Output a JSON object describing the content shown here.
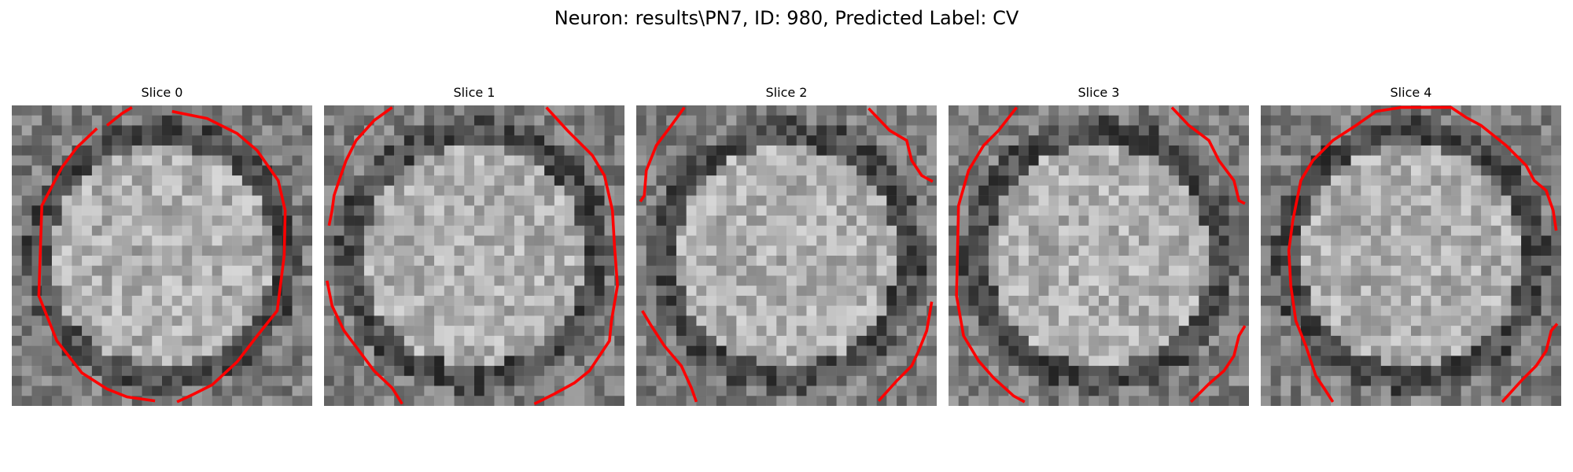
{
  "figure": {
    "title": "Neuron: results\\PN7, ID: 980, Predicted Label: CV"
  },
  "panels": [
    {
      "title": "Slice 0",
      "ring": "full",
      "seed": 11
    },
    {
      "title": "Slice 1",
      "ring": "arcs",
      "seed": 23
    },
    {
      "title": "Slice 2",
      "ring": "arcs",
      "seed": 37
    },
    {
      "title": "Slice 3",
      "ring": "arcs",
      "seed": 41
    },
    {
      "title": "Slice 4",
      "ring": "full",
      "seed": 59
    }
  ],
  "colors": {
    "contour": "#ff0000",
    "background": "#ffffff"
  }
}
